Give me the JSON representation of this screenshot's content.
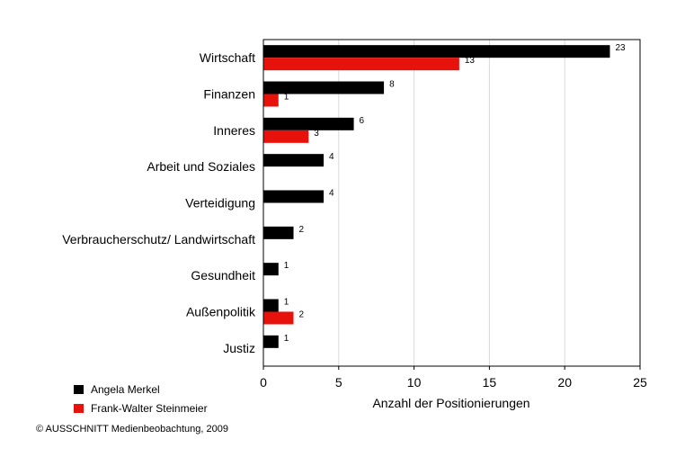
{
  "chart_data": {
    "type": "bar",
    "orientation": "horizontal",
    "categories": [
      "Wirtschaft",
      "Finanzen",
      "Inneres",
      "Arbeit und Soziales",
      "Verteidigung",
      "Verbraucherschutz/ Landwirtschaft",
      "Gesundheit",
      "Außenpolitik",
      "Justiz"
    ],
    "series": [
      {
        "name": "Angela Merkel",
        "color": "#000000",
        "values": [
          23,
          8,
          6,
          4,
          4,
          2,
          1,
          1,
          1
        ]
      },
      {
        "name": "Frank-Walter Steinmeier",
        "color": "#e8120c",
        "values": [
          13,
          1,
          3,
          null,
          null,
          null,
          null,
          2,
          null
        ]
      }
    ],
    "xlabel": "Anzahl der Positionierungen",
    "xlim": [
      0,
      25
    ],
    "xticks": [
      0,
      5,
      10,
      15,
      20,
      25
    ],
    "grid": "vertical",
    "legend": "bottom-left"
  },
  "footer": {
    "copyright": "© AUSSCHNITT Medienbeobachtung, 2009"
  }
}
